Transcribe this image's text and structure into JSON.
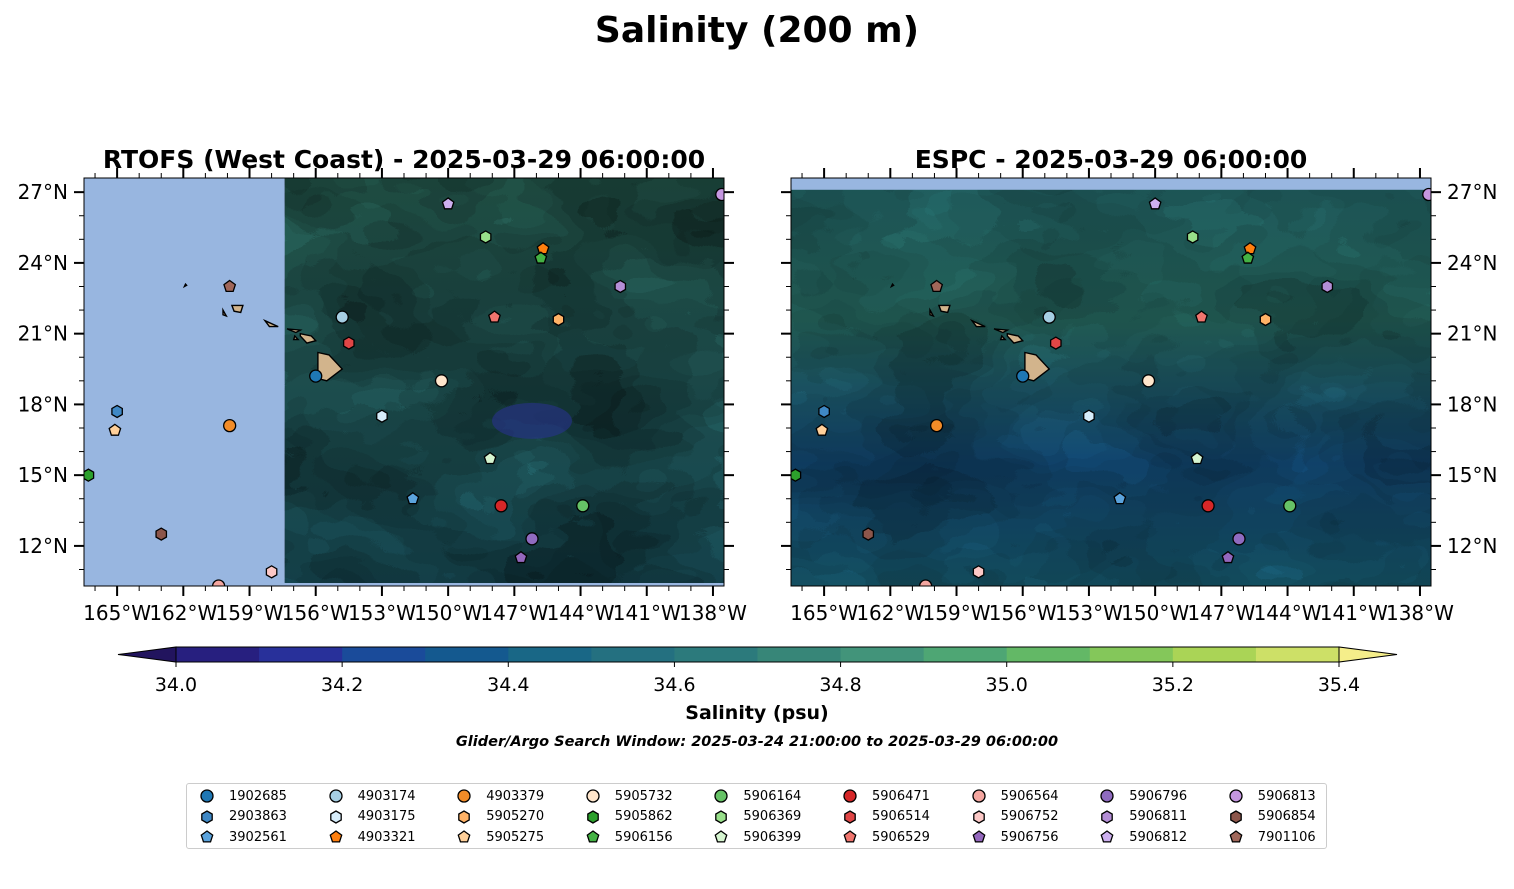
{
  "title": "Salinity (200 m)",
  "colors": {
    "land_mask": "#98b6e0",
    "island": "#d2b48c"
  },
  "chart_data": [
    {
      "type": "heatmap",
      "title": "RTOFS (West Coast) - 2025-03-29 06:00:00",
      "lon_range": [
        -166.5,
        -137.5
      ],
      "lat_range": [
        10.3,
        27.6
      ],
      "data_lon_start": -157.4,
      "x_ticks": [
        "165°W",
        "162°W",
        "159°W",
        "156°W",
        "153°W",
        "150°W",
        "147°W",
        "144°W",
        "141°W",
        "138°W"
      ],
      "x_tick_values": [
        -165,
        -162,
        -159,
        -156,
        -153,
        -150,
        -147,
        -144,
        -141,
        -138
      ],
      "y_ticks": [
        "12°N",
        "15°N",
        "18°N",
        "21°N",
        "24°N",
        "27°N"
      ],
      "y_tick_values": [
        12,
        15,
        18,
        21,
        24,
        27
      ],
      "y_axis_side": "left"
    },
    {
      "type": "heatmap",
      "title": "ESPC - 2025-03-29 06:00:00",
      "lon_range": [
        -166.5,
        -137.5
      ],
      "lat_range": [
        10.3,
        27.6
      ],
      "data_lat_end": 27.1,
      "x_ticks": [
        "165°W",
        "162°W",
        "159°W",
        "156°W",
        "153°W",
        "150°W",
        "147°W",
        "144°W",
        "141°W",
        "138°W"
      ],
      "x_tick_values": [
        -165,
        -162,
        -159,
        -156,
        -153,
        -150,
        -147,
        -144,
        -141,
        -138
      ],
      "y_ticks": [
        "12°N",
        "15°N",
        "18°N",
        "21°N",
        "24°N",
        "27°N"
      ],
      "y_tick_values": [
        12,
        15,
        18,
        21,
        24,
        27
      ],
      "y_axis_side": "right"
    }
  ],
  "colorbar": {
    "label": "Salinity (psu)",
    "range": [
      34.0,
      35.4
    ],
    "step": 0.1,
    "extend": "both",
    "tick_values": [
      34.0,
      34.2,
      34.4,
      34.6,
      34.8,
      35.0,
      35.2,
      35.4
    ],
    "ticks": [
      "34.0",
      "34.2",
      "34.4",
      "34.6",
      "34.8",
      "35.0",
      "35.2",
      "35.4"
    ],
    "colors": [
      "#22145e",
      "#271f7f",
      "#28309a",
      "#1a4b9a",
      "#14598f",
      "#196786",
      "#247080",
      "#2c7a7c",
      "#378678",
      "#42947a",
      "#4ea674",
      "#63b866",
      "#84c75a",
      "#aad456",
      "#cde067",
      "#f5ee8a"
    ]
  },
  "note": "Glider/Argo Search Window: 2025-03-24 21:00:00 to 2025-03-29 06:00:00",
  "floats": [
    {
      "id": "1902685",
      "marker": "circle",
      "color": "#1f77b4",
      "lon": -156.0,
      "lat": 19.2
    },
    {
      "id": "2903863",
      "marker": "hexagon",
      "color": "#3f88c5",
      "lon": -165.0,
      "lat": 17.7
    },
    {
      "id": "3902561",
      "marker": "pentagon",
      "color": "#5ba3dc",
      "lon": -151.6,
      "lat": 14.0
    },
    {
      "id": "4903174",
      "marker": "circle",
      "color": "#a6cee3",
      "lon": -154.8,
      "lat": 21.7
    },
    {
      "id": "4903175",
      "marker": "hexagon",
      "color": "#d6ecfa",
      "lon": -153.0,
      "lat": 17.5
    },
    {
      "id": "4903321",
      "marker": "pentagon",
      "color": "#ff7f0e",
      "lon": -145.7,
      "lat": 24.6
    },
    {
      "id": "4903379",
      "marker": "circle",
      "color": "#f28c28",
      "lon": -159.9,
      "lat": 17.1
    },
    {
      "id": "5905270",
      "marker": "hexagon",
      "color": "#ffb266",
      "lon": -145.0,
      "lat": 21.6
    },
    {
      "id": "5905275",
      "marker": "pentagon",
      "color": "#ffd09a",
      "lon": -165.1,
      "lat": 16.9
    },
    {
      "id": "5905732",
      "marker": "circle",
      "color": "#ffe6cc",
      "lon": -150.3,
      "lat": 19.0
    },
    {
      "id": "5905862",
      "marker": "hexagon",
      "color": "#2ca02c",
      "lon": -166.3,
      "lat": 15.0
    },
    {
      "id": "5906156",
      "marker": "pentagon",
      "color": "#44b244",
      "lon": -145.8,
      "lat": 24.2
    },
    {
      "id": "5906164",
      "marker": "circle",
      "color": "#66c266",
      "lon": -143.9,
      "lat": 13.7
    },
    {
      "id": "5906369",
      "marker": "hexagon",
      "color": "#98df8a",
      "lon": -148.3,
      "lat": 25.1
    },
    {
      "id": "5906399",
      "marker": "pentagon",
      "color": "#d6f5d0",
      "lon": -148.1,
      "lat": 15.7
    },
    {
      "id": "5906471",
      "marker": "circle",
      "color": "#d62728",
      "lon": -147.6,
      "lat": 13.7
    },
    {
      "id": "5906514",
      "marker": "hexagon",
      "color": "#e04646",
      "lon": -154.5,
      "lat": 20.6
    },
    {
      "id": "5906529",
      "marker": "pentagon",
      "color": "#f0756e",
      "lon": -147.9,
      "lat": 21.7
    },
    {
      "id": "5906564",
      "marker": "circle",
      "color": "#f4a6a0",
      "lon": -160.4,
      "lat": 10.3
    },
    {
      "id": "5906752",
      "marker": "hexagon",
      "color": "#fcc8c6",
      "lon": -158.0,
      "lat": 10.9
    },
    {
      "id": "5906756",
      "marker": "pentagon",
      "color": "#9467bd",
      "lon": -146.7,
      "lat": 11.5
    },
    {
      "id": "5906796",
      "marker": "circle",
      "color": "#8f6bc0",
      "lon": -146.2,
      "lat": 12.3
    },
    {
      "id": "5906811",
      "marker": "hexagon",
      "color": "#b48ed6",
      "lon": -142.2,
      "lat": 23.0
    },
    {
      "id": "5906812",
      "marker": "pentagon",
      "color": "#cdb0ef",
      "lon": -150.0,
      "lat": 26.5
    },
    {
      "id": "5906813",
      "marker": "circle",
      "color": "#c597e0",
      "lon": -137.6,
      "lat": 26.9
    },
    {
      "id": "5906854",
      "marker": "hexagon",
      "color": "#8c564b",
      "lon": -163.0,
      "lat": 12.5
    },
    {
      "id": "7901106",
      "marker": "pentagon",
      "color": "#a0675a",
      "lon": -159.9,
      "lat": 23.0
    }
  ],
  "legend": {
    "columns": 9,
    "rows": 3
  }
}
